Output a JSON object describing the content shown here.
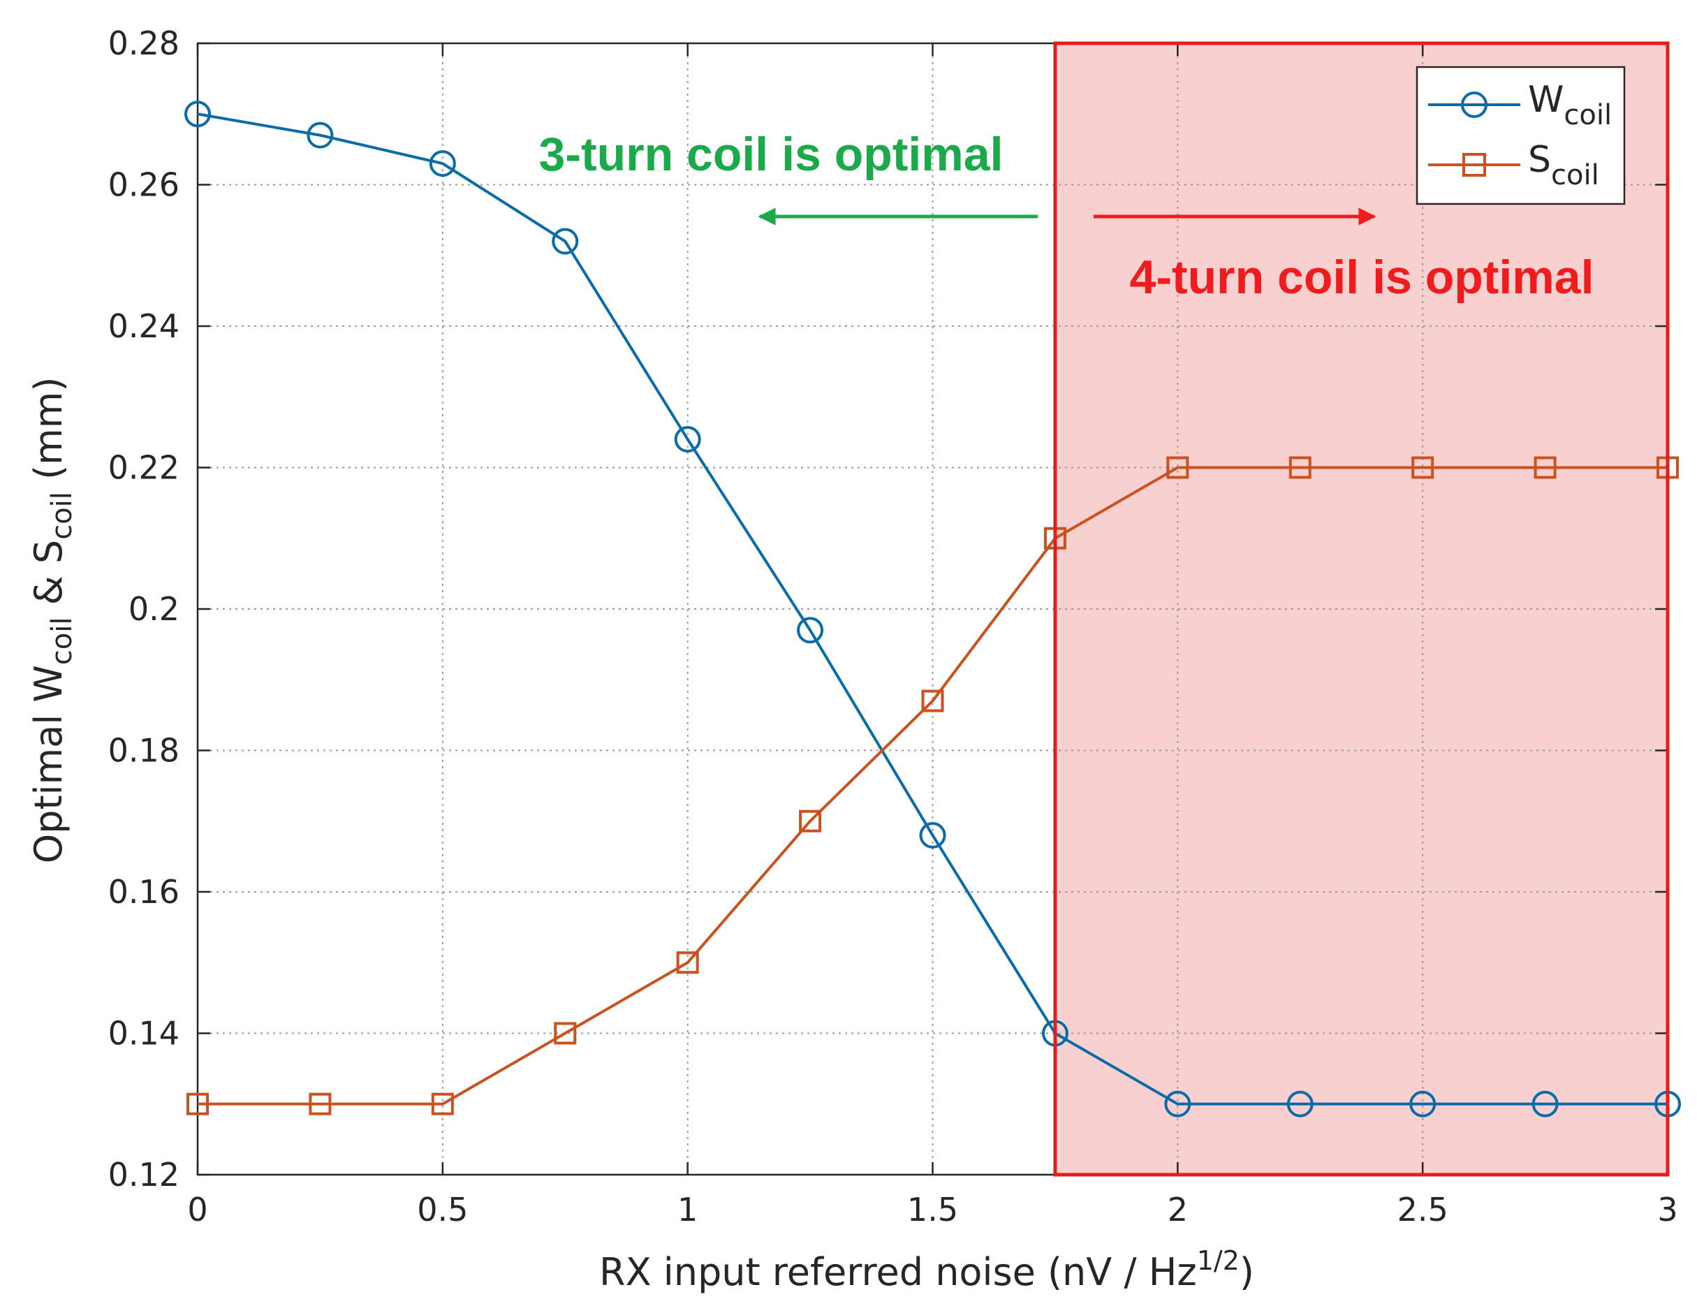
{
  "chart_data": {
    "type": "line",
    "title": "",
    "xlabel": {
      "main": "RX input referred noise (nV / Hz",
      "sup": "1/2",
      "end": ")"
    },
    "ylabel": {
      "part1": "Optimal W",
      "sub1": "coil",
      "part2": " & S",
      "sub2": "coil",
      "part3": " (mm)"
    },
    "xlim": [
      0,
      3
    ],
    "ylim": [
      0.12,
      0.28
    ],
    "xticks": [
      0,
      0.5,
      1,
      1.5,
      2,
      2.5,
      3
    ],
    "xtick_labels": [
      "0",
      "0.5",
      "1",
      "1.5",
      "2",
      "2.5",
      "3"
    ],
    "yticks": [
      0.12,
      0.14,
      0.16,
      0.18,
      0.2,
      0.22,
      0.24,
      0.26,
      0.28
    ],
    "ytick_labels": [
      "0.12",
      "0.14",
      "0.16",
      "0.18",
      "0.2",
      "0.22",
      "0.24",
      "0.26",
      "0.28"
    ],
    "grid": true,
    "x": [
      0,
      0.25,
      0.5,
      0.75,
      1,
      1.25,
      1.5,
      1.75,
      2,
      2.25,
      2.5,
      2.75,
      3
    ],
    "series": [
      {
        "name": "W",
        "sub": "coil",
        "marker": "circle",
        "color": "#0b6aa8",
        "values": [
          0.27,
          0.267,
          0.263,
          0.252,
          0.224,
          0.197,
          0.168,
          0.14,
          0.13,
          0.13,
          0.13,
          0.13,
          0.13
        ]
      },
      {
        "name": "S",
        "sub": "coil",
        "marker": "square",
        "color": "#c9521f",
        "values": [
          0.13,
          0.13,
          0.13,
          0.14,
          0.15,
          0.17,
          0.187,
          0.21,
          0.22,
          0.22,
          0.22,
          0.22,
          0.22
        ]
      }
    ],
    "legend_position": "top-right",
    "highlight_region": {
      "x_from": 1.75,
      "x_to": 3,
      "fill": "#f8d0d0",
      "stroke": "#e41c1c"
    },
    "annotations": [
      {
        "text": "3-turn coil is optimal",
        "color": "#1aaa4a",
        "arrow": "left"
      },
      {
        "text": "4-turn coil is optimal",
        "color": "#ee1c1c",
        "arrow": "right"
      }
    ]
  }
}
